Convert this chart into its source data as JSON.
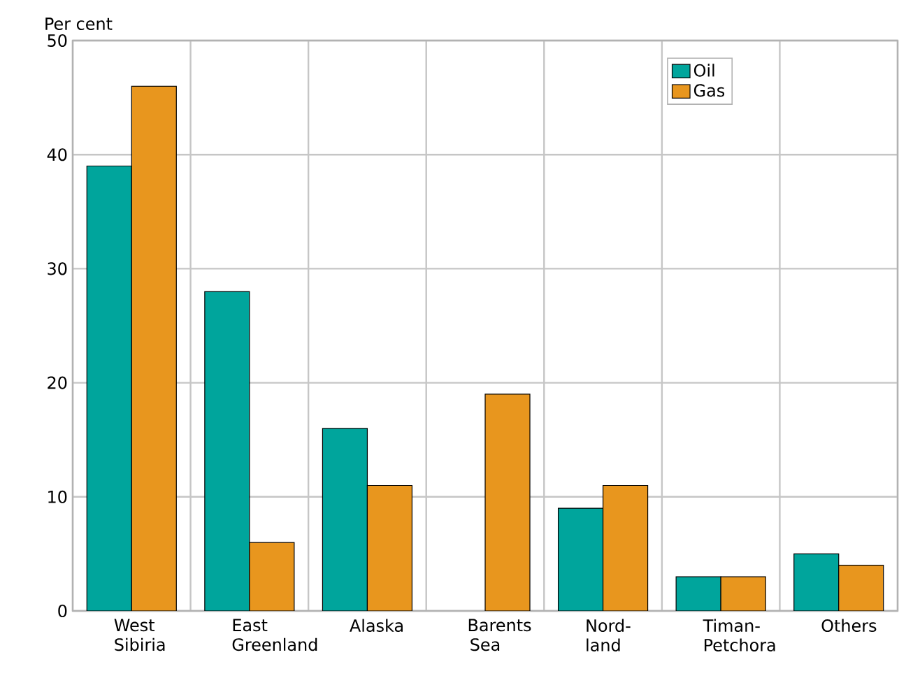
{
  "chart_data": {
    "type": "bar",
    "ylabel": "Per cent",
    "categories": [
      "West Sibiria",
      "East Greenland",
      "Alaska",
      "Barents Sea",
      "Nord-land",
      "Timan-Petchora",
      "Others"
    ],
    "series": [
      {
        "name": "Oil",
        "color": "#00a59c",
        "values": [
          39,
          28,
          16,
          null,
          9,
          3,
          5
        ]
      },
      {
        "name": "Gas",
        "color": "#e8961e",
        "values": [
          46,
          6,
          11,
          19,
          11,
          3,
          4
        ]
      }
    ],
    "ylim": [
      0,
      50
    ],
    "yticks": [
      0,
      10,
      20,
      30,
      40,
      50
    ],
    "grid": true,
    "legend": "top right"
  }
}
